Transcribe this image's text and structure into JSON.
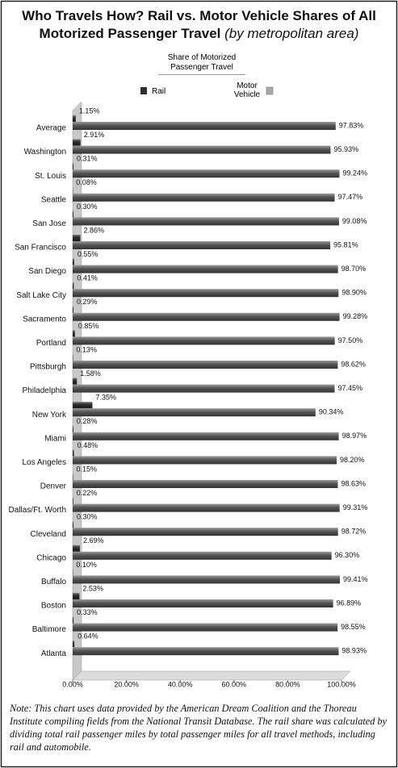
{
  "chart_data": {
    "type": "bar",
    "title": "Who Travels How? Rail vs. Motor Vehicle Shares of All Motorized Passenger Travel",
    "subtitle": "(by metropolitan area)",
    "legend_title": "Share of Motorized Passenger Travel",
    "note": "Note: This chart uses data provided by the American Dream Coalition and the Thoreau Institute compiling fields from the National Transit Database. The rail share was calculated by dividing total rail passenger miles by total passenger miles for all travel methods, including rail and automobile.",
    "categories": [
      "Average",
      "Washington",
      "St. Louis",
      "Seattle",
      "San Jose",
      "San Francisco",
      "San Diego",
      "Salt Lake City",
      "Sacramento",
      "Portland",
      "Pittsburgh",
      "Philadelphia",
      "New York",
      "Miami",
      "Los Angeles",
      "Denver",
      "Dallas/Ft. Worth",
      "Cleveland",
      "Chicago",
      "Buffalo",
      "Boston",
      "Baltimore",
      "Atlanta"
    ],
    "series": [
      {
        "name": "Rail",
        "color": "#2e2e2e",
        "values": [
          1.15,
          2.91,
          0.31,
          0.08,
          0.3,
          2.86,
          0.55,
          0.41,
          0.29,
          0.85,
          0.13,
          1.58,
          7.35,
          0.28,
          0.48,
          0.15,
          0.22,
          0.3,
          2.69,
          0.1,
          2.53,
          0.33,
          0.64
        ],
        "value_labels": [
          "1.15%",
          "2.91%",
          "0.31%",
          "0.08%",
          "0.30%",
          "2.86%",
          "0.55%",
          "0.41%",
          "0.29%",
          "0.85%",
          "0.13%",
          "1.58%",
          "7.35%",
          "0.28%",
          "0.48%",
          "0.15%",
          "0.22%",
          "0.30%",
          "2.69%",
          "0.10%",
          "2.53%",
          "0.33%",
          "0.64%"
        ]
      },
      {
        "name": "Motor Vehicle",
        "color": "#555555",
        "values": [
          97.83,
          95.93,
          99.24,
          97.47,
          99.08,
          95.81,
          98.7,
          98.9,
          99.28,
          97.5,
          98.62,
          97.45,
          90.34,
          98.97,
          98.2,
          98.63,
          99.31,
          98.72,
          96.3,
          99.41,
          96.89,
          98.55,
          98.93
        ],
        "value_labels": [
          "97.83%",
          "95.93%",
          "99.24%",
          "97.47%",
          "99.08%",
          "95.81%",
          "98.70%",
          "98.90%",
          "99.28%",
          "97.50%",
          "98.62%",
          "97.45%",
          "90.34%",
          "98.97%",
          "98.20%",
          "98.63%",
          "99.31%",
          "98.72%",
          "96.30%",
          "99.41%",
          "96.89%",
          "98.55%",
          "98.93%"
        ]
      }
    ],
    "xlim": [
      0,
      100
    ],
    "xticks": [
      {
        "value": 0,
        "label": "0.00%"
      },
      {
        "value": 20,
        "label": "20.00%"
      },
      {
        "value": 40,
        "label": "40.00%"
      },
      {
        "value": 60,
        "label": "60.00%"
      },
      {
        "value": 80,
        "label": "80.00%"
      },
      {
        "value": 100,
        "label": "100.00%"
      }
    ],
    "grid": false
  }
}
